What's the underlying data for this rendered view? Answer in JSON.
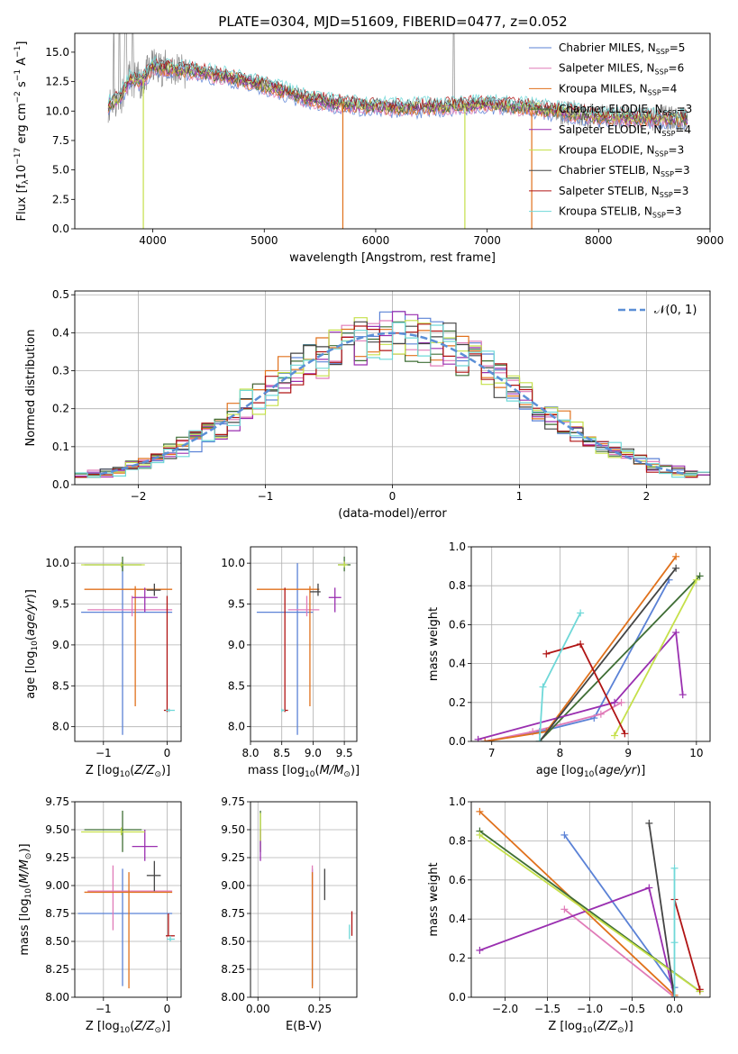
{
  "title": "PLATE=0304, MJD=51609, FIBERID=0477, z=0.052",
  "models": [
    {
      "name": "Chabrier MILES",
      "n": "5",
      "color": "#5b82d6"
    },
    {
      "name": "Salpeter MILES",
      "n": "6",
      "color": "#e07bb8"
    },
    {
      "name": "Kroupa MILES",
      "n": "4",
      "color": "#e0711c"
    },
    {
      "name": "Chabrier ELODIE",
      "n": "3",
      "color": "#3f6e35"
    },
    {
      "name": "Salpeter ELODIE",
      "n": "4",
      "color": "#9a2fb0"
    },
    {
      "name": "Kroupa ELODIE",
      "n": "3",
      "color": "#c5e04a"
    },
    {
      "name": "Chabrier STELIB",
      "n": "3",
      "color": "#444444"
    },
    {
      "name": "Salpeter STELIB",
      "n": "3",
      "color": "#b01414"
    },
    {
      "name": "Kroupa STELIB",
      "n": "3",
      "color": "#6fd8d8"
    }
  ],
  "chart_data": [
    {
      "id": "spectrum",
      "type": "line",
      "xlabel": "wavelength [Angstrom, rest frame]",
      "ylabel": "Flux [f",
      "xlim": [
        3300,
        9000
      ],
      "ylim": [
        0,
        16.6
      ],
      "xticks": [
        4000,
        5000,
        6000,
        7000,
        8000,
        9000
      ],
      "yticks": [
        0.0,
        2.5,
        5.0,
        7.5,
        10.0,
        12.5,
        15.0
      ],
      "data_color": "#888888",
      "continuum": [
        [
          3600,
          10.6
        ],
        [
          3700,
          11.0
        ],
        [
          3800,
          12.8
        ],
        [
          3900,
          12.5
        ],
        [
          4000,
          13.8
        ],
        [
          4200,
          13.5
        ],
        [
          4400,
          13.4
        ],
        [
          4600,
          13.0
        ],
        [
          4800,
          12.6
        ],
        [
          5000,
          12.2
        ],
        [
          5200,
          11.6
        ],
        [
          5400,
          11.0
        ],
        [
          5600,
          10.7
        ],
        [
          5800,
          10.5
        ],
        [
          6000,
          10.4
        ],
        [
          6200,
          10.3
        ],
        [
          6400,
          10.3
        ],
        [
          6600,
          10.4
        ],
        [
          6800,
          10.5
        ],
        [
          7000,
          10.6
        ],
        [
          7200,
          10.4
        ],
        [
          7400,
          10.3
        ],
        [
          7600,
          10.0
        ],
        [
          7800,
          9.8
        ],
        [
          8000,
          9.5
        ],
        [
          8200,
          9.5
        ],
        [
          8400,
          9.4
        ],
        [
          8600,
          9.4
        ],
        [
          8800,
          9.3
        ]
      ],
      "dips": [
        [
          3915,
          "#c5e04a"
        ],
        [
          5705,
          "#e0711c"
        ],
        [
          6800,
          "#c5e04a"
        ],
        [
          7400,
          "#e0711c"
        ]
      ],
      "spikes": [
        3650,
        3700,
        3750,
        3760,
        3820,
        6700
      ]
    },
    {
      "id": "residuals",
      "type": "histogram",
      "xlabel": "(data-model)/error",
      "ylabel": "Normed distribution",
      "xlim": [
        -2.5,
        2.5
      ],
      "ylim": [
        0,
        0.51
      ],
      "xticks": [
        -2,
        -1,
        0,
        1,
        2
      ],
      "yticks": [
        0.0,
        0.1,
        0.2,
        0.3,
        0.4,
        0.5
      ],
      "legend": "𝒩(0, 1)",
      "bin_width": 0.1
    },
    {
      "id": "age_vs_Z",
      "type": "scatter",
      "xlabel": "Z [log10(Z/Z⊙)]",
      "ylabel": "age [log10(age/yr)]",
      "xlim": [
        -1.45,
        0.22
      ],
      "ylim": [
        7.82,
        10.2
      ],
      "xticks": [
        -1,
        0
      ],
      "yticks": [
        8.0,
        8.5,
        9.0,
        9.5,
        10.0
      ],
      "points": [
        {
          "m": 0,
          "x": -0.7,
          "y": 9.4,
          "xe": [
            -1.35,
            0.08
          ],
          "ye": [
            7.9,
            10.0
          ]
        },
        {
          "m": 1,
          "x": -0.55,
          "y": 9.43,
          "xe": [
            -1.25,
            0.08
          ],
          "ye": [
            9.35,
            9.6
          ]
        },
        {
          "m": 2,
          "x": -0.5,
          "y": 9.68,
          "xe": [
            -1.3,
            0.08
          ],
          "ye": [
            8.25,
            9.72
          ]
        },
        {
          "m": 3,
          "x": -0.7,
          "y": 9.98,
          "xe": [
            -1.3,
            -0.4
          ],
          "ye": [
            9.9,
            10.08
          ]
        },
        {
          "m": 4,
          "x": -0.35,
          "y": 9.58,
          "xe": [
            -0.55,
            -0.15
          ],
          "ye": [
            9.4,
            9.7
          ]
        },
        {
          "m": 5,
          "x": -0.72,
          "y": 9.98,
          "xe": [
            -1.35,
            -0.35
          ],
          "ye": [
            9.95,
            10.01
          ]
        },
        {
          "m": 6,
          "x": -0.2,
          "y": 9.67,
          "xe": [
            -0.32,
            -0.1
          ],
          "ye": [
            9.6,
            9.75
          ]
        },
        {
          "m": 7,
          "x": 0.0,
          "y": 8.2,
          "xe": [
            -0.05,
            0.05
          ],
          "ye": [
            8.18,
            9.6
          ]
        },
        {
          "m": 8,
          "x": 0.03,
          "y": 8.2,
          "xe": [
            -0.02,
            0.12
          ],
          "ye": [
            8.18,
            8.22
          ]
        }
      ]
    },
    {
      "id": "age_vs_mass",
      "type": "scatter",
      "xlabel": "mass [log10(M/M⊙)]",
      "ylabel": "",
      "xlim": [
        8.0,
        9.7
      ],
      "ylim": [
        7.82,
        10.2
      ],
      "xticks": [
        8.0,
        8.5,
        9.0,
        9.5
      ],
      "yticks": [
        8.0,
        8.5,
        9.0,
        9.5,
        10.0
      ],
      "points": [
        {
          "m": 0,
          "x": 8.75,
          "y": 9.4,
          "xe": [
            8.1,
            9.0
          ],
          "ye": [
            7.9,
            10.0
          ]
        },
        {
          "m": 1,
          "x": 8.9,
          "y": 9.43,
          "xe": [
            8.6,
            9.1
          ],
          "ye": [
            9.35,
            9.6
          ]
        },
        {
          "m": 2,
          "x": 8.95,
          "y": 9.68,
          "xe": [
            8.1,
            9.1
          ],
          "ye": [
            8.25,
            9.72
          ]
        },
        {
          "m": 3,
          "x": 9.5,
          "y": 9.98,
          "xe": [
            9.4,
            9.6
          ],
          "ye": [
            9.9,
            10.08
          ]
        },
        {
          "m": 4,
          "x": 9.35,
          "y": 9.58,
          "xe": [
            9.25,
            9.45
          ],
          "ye": [
            9.4,
            9.7
          ]
        },
        {
          "m": 5,
          "x": 9.5,
          "y": 9.98,
          "xe": [
            9.4,
            9.55
          ],
          "ye": [
            9.95,
            10.02
          ]
        },
        {
          "m": 6,
          "x": 9.08,
          "y": 9.65,
          "xe": [
            8.95,
            9.12
          ],
          "ye": [
            9.6,
            9.75
          ]
        },
        {
          "m": 7,
          "x": 8.55,
          "y": 8.2,
          "xe": [
            8.5,
            8.6
          ],
          "ye": [
            8.18,
            9.7
          ]
        },
        {
          "m": 8,
          "x": 8.5,
          "y": 8.2,
          "xe": [
            8.5,
            8.55
          ],
          "ye": [
            8.18,
            8.22
          ]
        }
      ]
    },
    {
      "id": "weight_vs_age",
      "type": "line",
      "xlabel": "age [log10(age/yr)]",
      "ylabel": "mass weight",
      "xlim": [
        6.7,
        10.2
      ],
      "ylim": [
        0,
        1.0
      ],
      "xticks": [
        7,
        8,
        9,
        10
      ],
      "yticks": [
        0.0,
        0.2,
        0.4,
        0.6,
        0.8,
        1.0
      ],
      "series": [
        {
          "m": 0,
          "pts": [
            [
              6.9,
              0.0
            ],
            [
              7.7,
              0.05
            ],
            [
              8.5,
              0.12
            ],
            [
              9.6,
              0.83
            ]
          ]
        },
        {
          "m": 1,
          "pts": [
            [
              6.9,
              0.0
            ],
            [
              7.6,
              0.05
            ],
            [
              8.6,
              0.14
            ],
            [
              8.9,
              0.2
            ]
          ]
        },
        {
          "m": 2,
          "pts": [
            [
              6.9,
              0.0
            ],
            [
              7.8,
              0.05
            ],
            [
              9.7,
              0.95
            ]
          ]
        },
        {
          "m": 3,
          "pts": [
            [
              7.7,
              0.0
            ],
            [
              10.05,
              0.85
            ]
          ]
        },
        {
          "m": 4,
          "pts": [
            [
              6.8,
              0.01
            ],
            [
              8.8,
              0.2
            ],
            [
              9.7,
              0.56
            ],
            [
              9.8,
              0.24
            ]
          ]
        },
        {
          "m": 5,
          "pts": [
            [
              8.8,
              0.03
            ],
            [
              10.0,
              0.83
            ]
          ]
        },
        {
          "m": 6,
          "pts": [
            [
              7.7,
              0.0
            ],
            [
              9.7,
              0.89
            ]
          ]
        },
        {
          "m": 7,
          "pts": [
            [
              7.8,
              0.45
            ],
            [
              8.3,
              0.5
            ],
            [
              8.95,
              0.04
            ]
          ]
        },
        {
          "m": 8,
          "pts": [
            [
              7.7,
              0.0
            ],
            [
              7.75,
              0.28
            ],
            [
              8.3,
              0.66
            ]
          ]
        }
      ]
    },
    {
      "id": "mass_vs_Z",
      "type": "scatter",
      "xlabel": "Z [log10(Z/Z⊙)]",
      "ylabel": "mass [log10(M/M⊙)]",
      "xlim": [
        -1.45,
        0.22
      ],
      "ylim": [
        8.0,
        9.75
      ],
      "xticks": [
        -1,
        0
      ],
      "yticks": [
        8.0,
        8.25,
        8.5,
        8.75,
        9.0,
        9.25,
        9.5,
        9.75
      ],
      "points": [
        {
          "m": 0,
          "x": -0.7,
          "y": 8.75,
          "xe": [
            -1.4,
            0.08
          ],
          "ye": [
            8.1,
            9.15
          ]
        },
        {
          "m": 1,
          "x": -0.85,
          "y": 8.95,
          "xe": [
            -1.25,
            0.08
          ],
          "ye": [
            8.6,
            9.18
          ]
        },
        {
          "m": 2,
          "x": -0.6,
          "y": 8.94,
          "xe": [
            -1.3,
            0.08
          ],
          "ye": [
            8.08,
            9.12
          ]
        },
        {
          "m": 3,
          "x": -0.7,
          "y": 9.5,
          "xe": [
            -1.3,
            -0.4
          ],
          "ye": [
            9.3,
            9.67
          ]
        },
        {
          "m": 4,
          "x": -0.35,
          "y": 9.35,
          "xe": [
            -0.55,
            -0.15
          ],
          "ye": [
            9.22,
            9.5
          ]
        },
        {
          "m": 5,
          "x": -0.72,
          "y": 9.48,
          "xe": [
            -1.35,
            -0.35
          ],
          "ye": [
            9.45,
            9.52
          ]
        },
        {
          "m": 6,
          "x": -0.2,
          "y": 9.09,
          "xe": [
            -0.32,
            -0.1
          ],
          "ye": [
            8.95,
            9.22
          ]
        },
        {
          "m": 7,
          "x": 0.02,
          "y": 8.55,
          "xe": [
            -0.02,
            0.12
          ],
          "ye": [
            8.55,
            8.75
          ]
        },
        {
          "m": 8,
          "x": 0.05,
          "y": 8.52,
          "xe": [
            0.0,
            0.12
          ],
          "ye": [
            8.5,
            8.55
          ]
        }
      ]
    },
    {
      "id": "mass_vs_EBV",
      "type": "scatter",
      "xlabel": "E(B-V)",
      "ylabel": "",
      "xlim": [
        -0.03,
        0.4
      ],
      "ylim": [
        8.0,
        9.75
      ],
      "xticks": [
        0.0,
        0.25
      ],
      "yticks": [
        8.0,
        8.25,
        8.5,
        8.75,
        9.0,
        9.25,
        9.5,
        9.75
      ],
      "points": [
        {
          "m": 0,
          "x": 0.22,
          "y": 8.75,
          "xe": [
            0.22,
            0.22
          ],
          "ye": [
            8.1,
            9.15
          ]
        },
        {
          "m": 1,
          "x": 0.22,
          "y": 8.95,
          "xe": [
            0.22,
            0.22
          ],
          "ye": [
            8.6,
            9.18
          ]
        },
        {
          "m": 2,
          "x": 0.22,
          "y": 8.94,
          "xe": [
            0.22,
            0.22
          ],
          "ye": [
            8.08,
            9.12
          ]
        },
        {
          "m": 3,
          "x": 0.01,
          "y": 9.5,
          "xe": [
            0.01,
            0.01
          ],
          "ye": [
            9.3,
            9.67
          ]
        },
        {
          "m": 4,
          "x": 0.01,
          "y": 9.35,
          "xe": [
            0.01,
            0.01
          ],
          "ye": [
            9.22,
            9.5
          ]
        },
        {
          "m": 5,
          "x": 0.01,
          "y": 9.48,
          "xe": [
            0.01,
            0.01
          ],
          "ye": [
            9.4,
            9.65
          ]
        },
        {
          "m": 6,
          "x": 0.27,
          "y": 9.0,
          "xe": [
            0.27,
            0.27
          ],
          "ye": [
            8.87,
            9.15
          ]
        },
        {
          "m": 7,
          "x": 0.38,
          "y": 8.6,
          "xe": [
            0.38,
            0.38
          ],
          "ye": [
            8.55,
            8.77
          ]
        },
        {
          "m": 8,
          "x": 0.37,
          "y": 8.58,
          "xe": [
            0.37,
            0.37
          ],
          "ye": [
            8.52,
            8.65
          ]
        }
      ]
    },
    {
      "id": "weight_vs_Z",
      "type": "line",
      "xlabel": "Z [log10(Z/Z⊙)]",
      "ylabel": "mass weight",
      "xlim": [
        -2.4,
        0.42
      ],
      "ylim": [
        0,
        1.0
      ],
      "xticks": [
        -2.0,
        -1.5,
        -1.0,
        -0.5,
        0.0
      ],
      "yticks": [
        0.0,
        0.2,
        0.4,
        0.6,
        0.8,
        1.0
      ],
      "series": [
        {
          "m": 0,
          "pts": [
            [
              -1.3,
              0.83
            ],
            [
              0.0,
              0.05
            ],
            [
              0.0,
              0.0
            ]
          ]
        },
        {
          "m": 1,
          "pts": [
            [
              -1.3,
              0.45
            ],
            [
              0.0,
              0.0
            ]
          ]
        },
        {
          "m": 2,
          "pts": [
            [
              -2.3,
              0.95
            ],
            [
              0.0,
              0.01
            ],
            [
              0.0,
              0.0
            ]
          ]
        },
        {
          "m": 3,
          "pts": [
            [
              -2.3,
              0.85
            ],
            [
              0.3,
              0.03
            ]
          ]
        },
        {
          "m": 4,
          "pts": [
            [
              -2.3,
              0.24
            ],
            [
              -0.3,
              0.56
            ],
            [
              0.0,
              0.0
            ]
          ]
        },
        {
          "m": 5,
          "pts": [
            [
              -2.3,
              0.83
            ],
            [
              0.3,
              0.03
            ]
          ]
        },
        {
          "m": 6,
          "pts": [
            [
              -0.3,
              0.89
            ],
            [
              0.0,
              0.0
            ]
          ]
        },
        {
          "m": 7,
          "pts": [
            [
              0.0,
              0.5
            ],
            [
              0.3,
              0.04
            ]
          ]
        },
        {
          "m": 8,
          "pts": [
            [
              0.0,
              0.66
            ],
            [
              0.0,
              0.28
            ],
            [
              0.0,
              0.0
            ]
          ]
        }
      ]
    }
  ]
}
